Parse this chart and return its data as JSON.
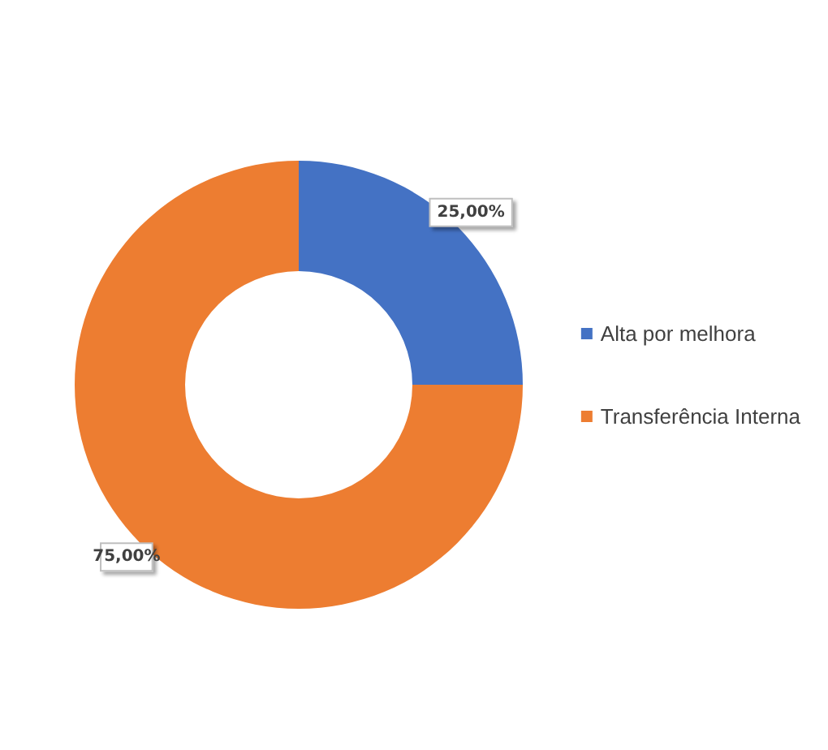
{
  "chart_data": {
    "type": "donut",
    "categories": [
      "Alta por melhora",
      "Transferência Interna"
    ],
    "values": [
      25,
      75
    ],
    "colors": [
      "#4472c4",
      "#ed7d31"
    ],
    "value_labels": [
      "25,00%",
      "75,00%"
    ],
    "legend": "right"
  }
}
